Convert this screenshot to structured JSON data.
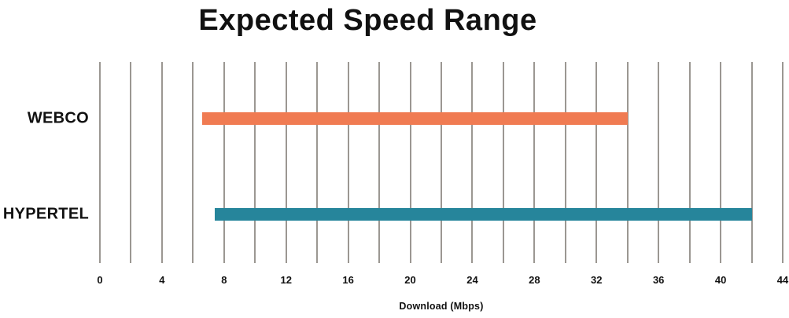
{
  "chart_data": {
    "type": "bar",
    "variant": "horizontal-range",
    "title": "Expected Speed Range",
    "xlabel": "Download (Mbps)",
    "xlim": [
      0,
      44
    ],
    "x_tick_step": 4,
    "x_tick_labels": [
      "0",
      "4",
      "8",
      "12",
      "16",
      "20",
      "24",
      "28",
      "32",
      "36",
      "40",
      "44"
    ],
    "gridline_step": 2,
    "grid": "vertical-only",
    "legend": "none",
    "categories": [
      "WEBCO",
      "HYPERTEL"
    ],
    "series": [
      {
        "name": "WEBCO",
        "min": 6.6,
        "max": 34,
        "color": "#F07B52"
      },
      {
        "name": "HYPERTEL",
        "min": 7.4,
        "max": 42,
        "color": "#26859B"
      }
    ],
    "colors": {
      "gridline": "#9B9792",
      "text": "#111111",
      "background": "#FFFFFF"
    }
  }
}
